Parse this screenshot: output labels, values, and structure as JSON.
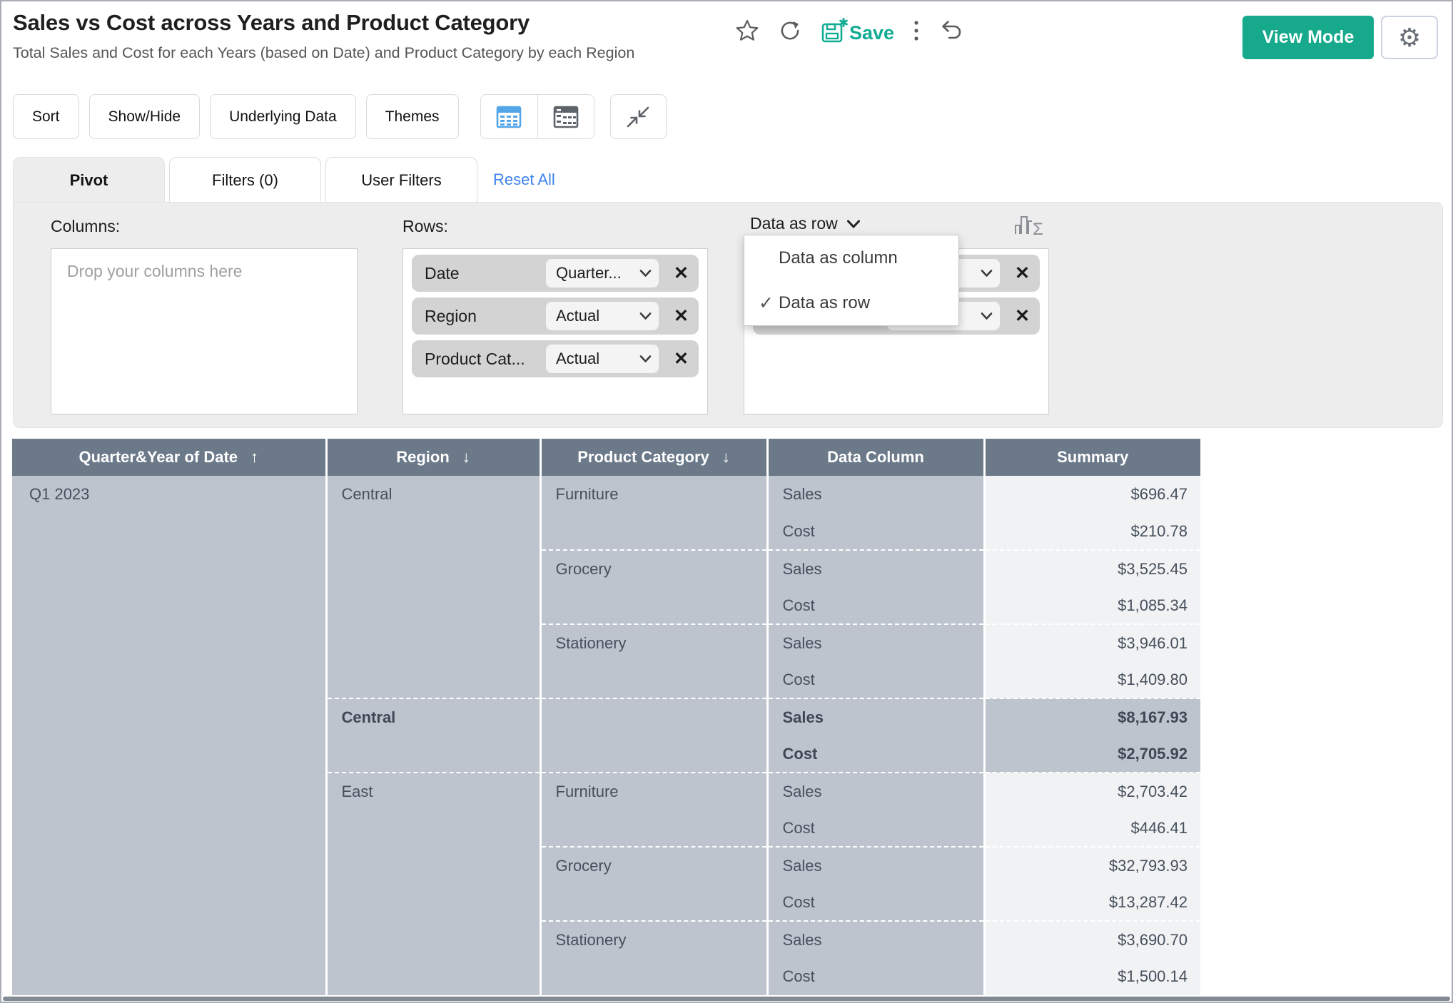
{
  "colors": {
    "accent_teal": "#17a98c",
    "save_teal": "#12ab93",
    "link_blue": "#3c82ef",
    "header_slate": "#6b7989",
    "cell_blue_gray": "#bdc4ce",
    "summary_bg": "#f1f2f3",
    "panel_gray": "#ededed",
    "table_icon_blue": "#54a4e8"
  },
  "header": {
    "title": "Sales vs Cost across Years and Product Category",
    "subtitle": "Total Sales and Cost for each Years (based on Date) and Product Category by each Region",
    "save_label": "Save",
    "view_mode_label": "View Mode"
  },
  "toolbar": {
    "sort": "Sort",
    "show_hide": "Show/Hide",
    "underlying_data": "Underlying Data",
    "themes": "Themes"
  },
  "tabs": {
    "pivot": "Pivot",
    "filters": "Filters  (0)",
    "user_filters": "User Filters",
    "reset_all": "Reset All"
  },
  "pivot_panel": {
    "columns_label": "Columns:",
    "columns_placeholder": "Drop your columns here",
    "rows_label": "Rows:",
    "row_fields": [
      {
        "name": "Date",
        "selected": "Quarter..."
      },
      {
        "name": "Region",
        "selected": "Actual"
      },
      {
        "name": "Product Cat...",
        "selected": "Actual"
      }
    ],
    "data_mode_label": "Data as row",
    "data_menu": {
      "items": [
        {
          "label": "Data as column",
          "checked": false
        },
        {
          "label": "Data as row",
          "checked": true
        }
      ]
    }
  },
  "table": {
    "headers": [
      {
        "label": "Quarter&Year of Date",
        "sort": "asc"
      },
      {
        "label": "Region",
        "sort": "desc"
      },
      {
        "label": "Product Category",
        "sort": "desc"
      },
      {
        "label": "Data Column",
        "sort": ""
      },
      {
        "label": "Summary",
        "sort": ""
      }
    ],
    "row_dimension": "Q1 2023",
    "groups": [
      {
        "region": "Central",
        "total": false,
        "categories": [
          {
            "name": "Furniture",
            "measures": [
              {
                "label": "Sales",
                "value": "$696.47"
              },
              {
                "label": "Cost",
                "value": "$210.78"
              }
            ]
          },
          {
            "name": "Grocery",
            "measures": [
              {
                "label": "Sales",
                "value": "$3,525.45"
              },
              {
                "label": "Cost",
                "value": "$1,085.34"
              }
            ]
          },
          {
            "name": "Stationery",
            "measures": [
              {
                "label": "Sales",
                "value": "$3,946.01"
              },
              {
                "label": "Cost",
                "value": "$1,409.80"
              }
            ]
          }
        ]
      },
      {
        "region": "Central",
        "total": true,
        "categories": [
          {
            "name": "",
            "measures": [
              {
                "label": "Sales",
                "value": "$8,167.93"
              },
              {
                "label": "Cost",
                "value": "$2,705.92"
              }
            ]
          }
        ]
      },
      {
        "region": "East",
        "total": false,
        "categories": [
          {
            "name": "Furniture",
            "measures": [
              {
                "label": "Sales",
                "value": "$2,703.42"
              },
              {
                "label": "Cost",
                "value": "$446.41"
              }
            ]
          },
          {
            "name": "Grocery",
            "measures": [
              {
                "label": "Sales",
                "value": "$32,793.93"
              },
              {
                "label": "Cost",
                "value": "$13,287.42"
              }
            ]
          },
          {
            "name": "Stationery",
            "measures": [
              {
                "label": "Sales",
                "value": "$3,690.70"
              },
              {
                "label": "Cost",
                "value": "$1,500.14"
              }
            ]
          }
        ]
      }
    ]
  }
}
